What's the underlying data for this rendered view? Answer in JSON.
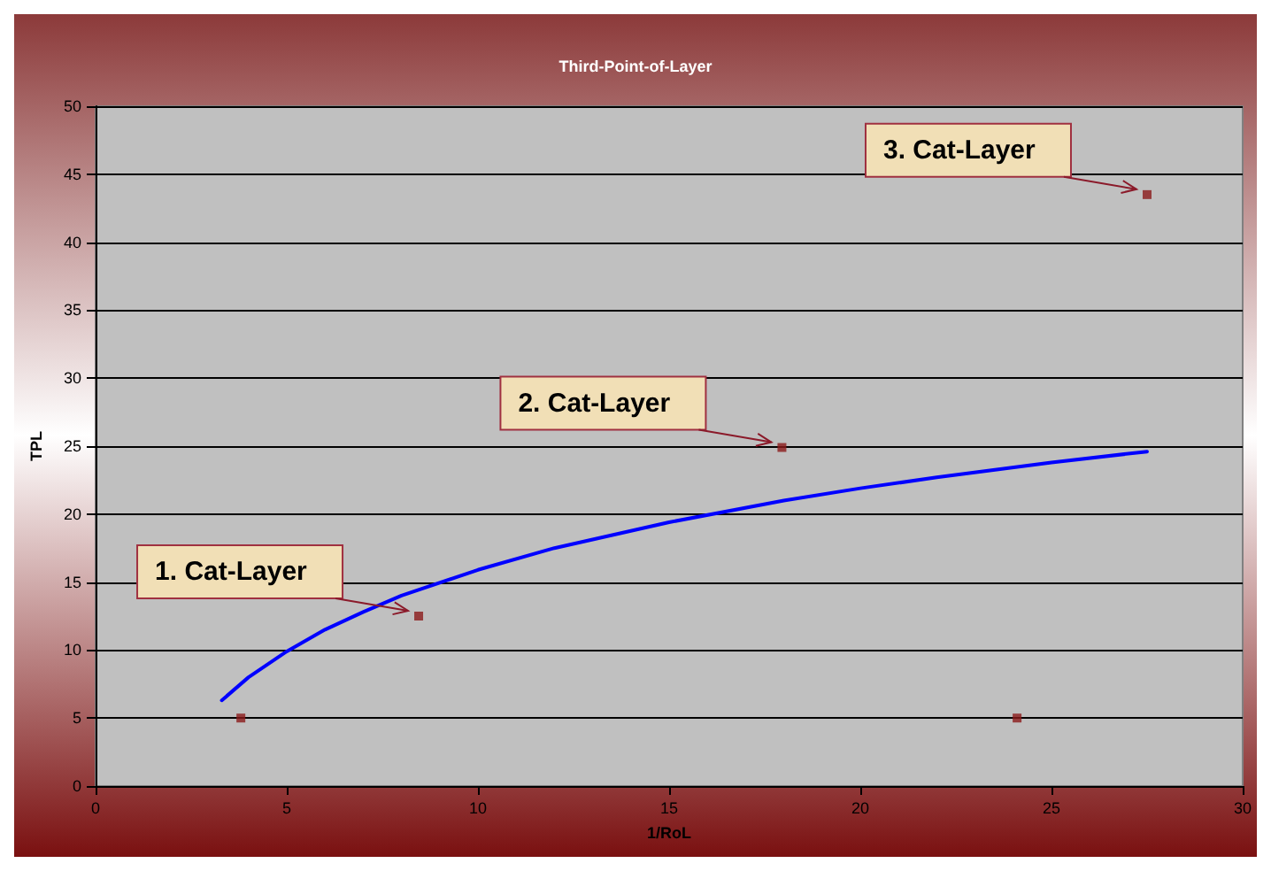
{
  "chart_data": {
    "type": "scatter",
    "title": "Third-Point-of-Layer",
    "xlabel": "1/RoL",
    "ylabel": "TPL",
    "xlim": [
      0,
      30
    ],
    "xticks": [
      0,
      5,
      10,
      15,
      20,
      25,
      30
    ],
    "ylim": [
      0,
      50
    ],
    "yticks": [
      0,
      5,
      10,
      15,
      20,
      25,
      30,
      35,
      40,
      45,
      50
    ],
    "grid": "y",
    "series": [
      {
        "color": "#8b1a1a",
        "marker": "square",
        "x": [
          3.8,
          8.45,
          17.95,
          24.1,
          27.5
        ],
        "values": [
          5,
          12.5,
          24.9,
          5,
          43.5
        ]
      },
      {
        "type": "line",
        "color": "#0000ff",
        "marker": "none",
        "line_style": "solid",
        "x": [
          3.3,
          4,
          5,
          6,
          7,
          8,
          10,
          12,
          15,
          18,
          20,
          22,
          25,
          27.5
        ],
        "values": [
          6.3,
          8,
          9.9,
          11.5,
          12.8,
          14,
          15.9,
          17.5,
          19.4,
          21,
          21.9,
          22.7,
          23.8,
          24.6
        ]
      }
    ],
    "annotations": [
      {
        "text": "1. Cat-Layer",
        "x": 8.45,
        "y": 12.5
      },
      {
        "text": "2. Cat-Layer",
        "x": 17.95,
        "y": 24.9
      },
      {
        "text": "3. Cat-Layer",
        "x": 27.5,
        "y": 43.5
      }
    ]
  }
}
